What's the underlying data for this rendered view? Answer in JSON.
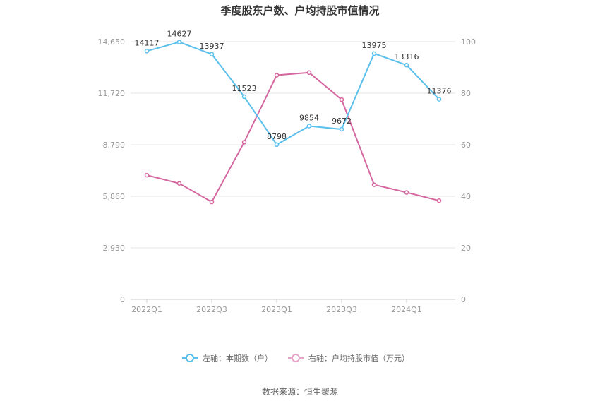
{
  "chart_data": {
    "type": "line",
    "title": "季度股东户数、户均持股市值情况",
    "categories": [
      "2022Q1",
      "2022Q2",
      "2022Q3",
      "2022Q4",
      "2023Q1",
      "2023Q2",
      "2023Q3",
      "2023Q4",
      "2024Q1",
      "2024Q2"
    ],
    "x_tick_labels": [
      "2022Q1",
      "2022Q3",
      "2023Q1",
      "2023Q3",
      "2024Q1"
    ],
    "left_axis": {
      "ticks": [
        "0",
        "2,930",
        "5,860",
        "8,790",
        "11,720",
        "14,650"
      ],
      "ylim": [
        0,
        14650
      ]
    },
    "right_axis": {
      "ticks": [
        "0",
        "20",
        "40",
        "60",
        "80",
        "100"
      ],
      "ylim": [
        0,
        100
      ]
    },
    "series": [
      {
        "name": "左轴：本期数（户）",
        "axis": "left",
        "color": "#5bc0eb",
        "values": [
          14117,
          14627,
          13937,
          11523,
          8798,
          9854,
          9672,
          13975,
          13316,
          11376
        ],
        "labels": [
          "14117",
          "14627",
          "13937",
          "11523",
          "8798",
          "9854",
          "9672",
          "13975",
          "13316",
          "11376"
        ]
      },
      {
        "name": "右轴：户均持股市值（万元）",
        "axis": "right",
        "color": "#d4679f",
        "values": [
          48.2,
          45.0,
          37.8,
          61.0,
          87.0,
          88.0,
          77.5,
          44.5,
          41.5,
          38.3
        ]
      }
    ],
    "grid": true,
    "legend_position": "bottom"
  },
  "source": "数据来源：恒生聚源"
}
